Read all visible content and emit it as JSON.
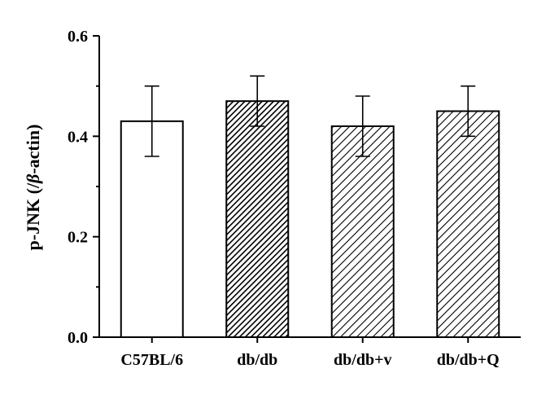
{
  "chart_data": {
    "type": "bar",
    "categories": [
      "C57BL/6",
      "db/db",
      "db/db+v",
      "db/db+Q"
    ],
    "values": [
      0.43,
      0.47,
      0.42,
      0.45
    ],
    "errors": [
      0.07,
      0.05,
      0.06,
      0.05
    ],
    "fills": [
      "none",
      "dense-hatch",
      "hatch",
      "hatch"
    ],
    "ylabel": "p-JNK (/β-actin)",
    "ylabel_parts": {
      "before": "p-JNK (/",
      "greek": "β",
      "after": "-actin)"
    },
    "ylim": [
      0,
      0.6
    ],
    "yticks": [
      0.0,
      0.2,
      0.4,
      0.6
    ],
    "ytick_labels": [
      "0.0",
      "0.2",
      "0.4",
      "0.6"
    ],
    "grid": false,
    "legend": "none"
  }
}
